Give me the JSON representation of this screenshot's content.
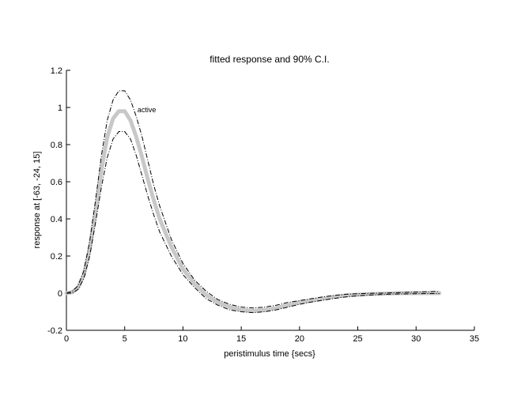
{
  "chart_data": {
    "type": "line",
    "title": "fitted response and 90% C.I.",
    "xlabel": "peristimulus time {secs}",
    "ylabel": "response at [-63, -24, 15]",
    "xlim": [
      0,
      35
    ],
    "ylim": [
      -0.2,
      1.2
    ],
    "xticks": [
      "0",
      "5",
      "10",
      "15",
      "20",
      "25",
      "30",
      "35"
    ],
    "yticks": [
      "-0.2",
      "0",
      "0.2",
      "0.4",
      "0.6",
      "0.8",
      "1",
      "1.2"
    ],
    "grid": false,
    "annotation": "active",
    "series": [
      {
        "role": "fitted",
        "color": "#c8c8c8",
        "x": [
          0,
          0.5,
          1,
          1.5,
          2,
          2.5,
          3,
          3.5,
          4,
          4.5,
          5,
          5.5,
          6,
          6.5,
          7,
          7.5,
          8,
          9,
          10,
          11,
          12,
          13,
          14,
          15,
          16,
          17,
          18,
          19,
          20,
          21,
          22,
          23,
          24,
          25,
          26,
          27,
          28,
          29,
          30,
          31,
          32
        ],
        "y": [
          0,
          0.005,
          0.03,
          0.1,
          0.24,
          0.44,
          0.66,
          0.84,
          0.94,
          0.98,
          0.98,
          0.93,
          0.84,
          0.73,
          0.61,
          0.5,
          0.4,
          0.25,
          0.13,
          0.05,
          -0.01,
          -0.05,
          -0.075,
          -0.09,
          -0.095,
          -0.09,
          -0.08,
          -0.065,
          -0.05,
          -0.04,
          -0.03,
          -0.02,
          -0.012,
          -0.008,
          -0.005,
          -0.003,
          -0.001,
          0,
          0,
          0,
          0
        ]
      },
      {
        "role": "ci-upper",
        "color": "#000000",
        "x": [
          0,
          0.5,
          1,
          1.5,
          2,
          2.5,
          3,
          3.5,
          4,
          4.5,
          5,
          5.5,
          6,
          6.5,
          7,
          7.5,
          8,
          9,
          10,
          11,
          12,
          13,
          14,
          15,
          16,
          17,
          18,
          19,
          20,
          21,
          22,
          23,
          24,
          25,
          26,
          27,
          28,
          29,
          30,
          31,
          32
        ],
        "y": [
          0,
          0.01,
          0.04,
          0.12,
          0.28,
          0.5,
          0.74,
          0.93,
          1.04,
          1.09,
          1.09,
          1.04,
          0.95,
          0.84,
          0.71,
          0.58,
          0.47,
          0.29,
          0.16,
          0.07,
          0.01,
          -0.035,
          -0.06,
          -0.075,
          -0.08,
          -0.075,
          -0.065,
          -0.05,
          -0.04,
          -0.03,
          -0.02,
          -0.012,
          -0.006,
          -0.003,
          -0.001,
          0,
          0.002,
          0.004,
          0.006,
          0.008,
          0.01
        ]
      },
      {
        "role": "ci-lower",
        "color": "#000000",
        "x": [
          0,
          0.5,
          1,
          1.5,
          2,
          2.5,
          3,
          3.5,
          4,
          4.5,
          5,
          5.5,
          6,
          6.5,
          7,
          7.5,
          8,
          9,
          10,
          11,
          12,
          13,
          14,
          15,
          16,
          17,
          18,
          19,
          20,
          21,
          22,
          23,
          24,
          25,
          26,
          27,
          28,
          29,
          30,
          31,
          32
        ],
        "y": [
          0,
          0,
          0.02,
          0.08,
          0.2,
          0.38,
          0.57,
          0.73,
          0.83,
          0.87,
          0.87,
          0.83,
          0.74,
          0.63,
          0.52,
          0.42,
          0.33,
          0.2,
          0.1,
          0.03,
          -0.03,
          -0.065,
          -0.09,
          -0.1,
          -0.105,
          -0.1,
          -0.09,
          -0.075,
          -0.06,
          -0.048,
          -0.038,
          -0.028,
          -0.02,
          -0.014,
          -0.01,
          -0.007,
          -0.005,
          -0.004,
          -0.003,
          -0.002,
          -0.002
        ]
      }
    ]
  }
}
